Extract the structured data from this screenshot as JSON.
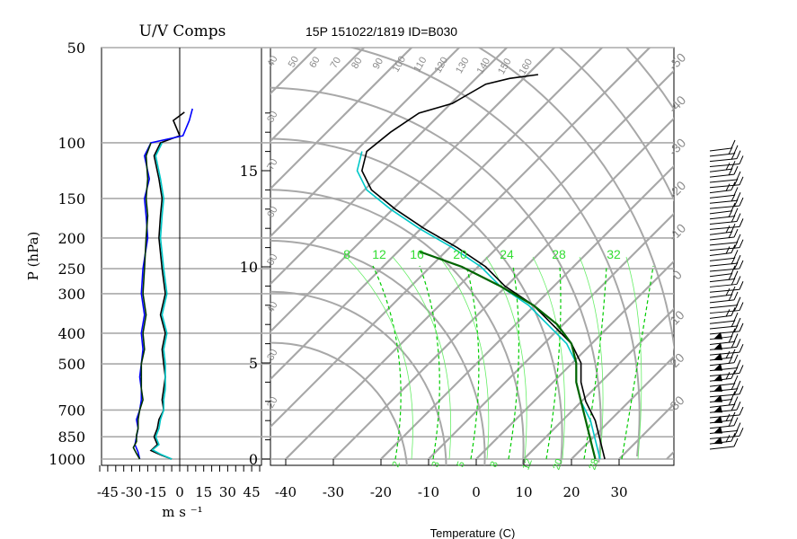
{
  "chart_data": [
    {
      "type": "line",
      "title": "U/V Comps",
      "xlabel": "m s ⁻¹",
      "ylabel": "P (hPa)",
      "x_ticks": [
        "-45",
        "-30",
        "-15",
        "0",
        "15",
        "30",
        "45"
      ],
      "y_ticks": [
        "50",
        "100",
        "150",
        "200",
        "250",
        "300",
        "400",
        "500",
        "700",
        "850",
        "1000"
      ],
      "y_tick_values": [
        50,
        100,
        150,
        200,
        250,
        300,
        400,
        500,
        700,
        850,
        1000
      ],
      "ylim": [
        50,
        1000
      ],
      "xlim": [
        -50,
        50
      ],
      "series": [
        {
          "color": "#000000",
          "points": [
            [
              -5,
              1000
            ],
            [
              -12,
              970
            ],
            [
              -18,
              940
            ],
            [
              -14,
              900
            ],
            [
              -16,
              850
            ],
            [
              -14,
              800
            ],
            [
              -13,
              750
            ],
            [
              -10,
              700
            ],
            [
              -11,
              650
            ],
            [
              -10,
              600
            ],
            [
              -9,
              550
            ],
            [
              -10,
              500
            ],
            [
              -11,
              450
            ],
            [
              -9,
              400
            ],
            [
              -12,
              350
            ],
            [
              -9,
              300
            ],
            [
              -11,
              250
            ],
            [
              -13,
              200
            ],
            [
              -12,
              170
            ],
            [
              -11,
              150
            ],
            [
              -13,
              130
            ],
            [
              -16,
              110
            ],
            [
              -12,
              100
            ],
            [
              0,
              95
            ],
            [
              -4,
              85
            ],
            [
              3,
              80
            ]
          ]
        },
        {
          "color": "#00c8c8",
          "points": [
            [
              -5,
              1000
            ],
            [
              -12,
              965
            ],
            [
              -17,
              935
            ],
            [
              -13,
              900
            ],
            [
              -15,
              850
            ],
            [
              -13,
              800
            ],
            [
              -12,
              750
            ],
            [
              -10,
              700
            ],
            [
              -10,
              650
            ],
            [
              -9,
              600
            ],
            [
              -9,
              550
            ],
            [
              -9,
              500
            ],
            [
              -10,
              450
            ],
            [
              -8,
              400
            ],
            [
              -11,
              350
            ],
            [
              -8,
              300
            ],
            [
              -10,
              250
            ],
            [
              -12,
              200
            ],
            [
              -11,
              170
            ],
            [
              -10,
              150
            ],
            [
              -12,
              130
            ],
            [
              -15,
              110
            ],
            [
              -11,
              100
            ]
          ]
        },
        {
          "color": "#0000ff",
          "points": [
            [
              -25,
              1000
            ],
            [
              -26,
              950
            ],
            [
              -28,
              900
            ],
            [
              -27,
              850
            ],
            [
              -26,
              800
            ],
            [
              -27,
              750
            ],
            [
              -25,
              700
            ],
            [
              -24,
              650
            ],
            [
              -24,
              600
            ],
            [
              -25,
              550
            ],
            [
              -24,
              500
            ],
            [
              -23,
              450
            ],
            [
              -24,
              400
            ],
            [
              -22,
              350
            ],
            [
              -24,
              300
            ],
            [
              -23,
              250
            ],
            [
              -20,
              200
            ],
            [
              -21,
              170
            ],
            [
              -22,
              150
            ],
            [
              -19,
              130
            ],
            [
              -22,
              110
            ],
            [
              -18,
              100
            ],
            [
              2,
              95
            ],
            [
              6,
              85
            ],
            [
              8,
              78
            ]
          ]
        },
        {
          "color": "#003300",
          "points": [
            [
              -25,
              1000
            ],
            [
              -27,
              960
            ],
            [
              -29,
              920
            ],
            [
              -27,
              880
            ],
            [
              -27,
              840
            ],
            [
              -26,
              800
            ],
            [
              -26,
              750
            ],
            [
              -25,
              700
            ],
            [
              -23,
              650
            ],
            [
              -24,
              600
            ],
            [
              -24,
              560
            ],
            [
              -24,
              500
            ],
            [
              -22,
              450
            ],
            [
              -23,
              400
            ],
            [
              -21,
              350
            ],
            [
              -23,
              300
            ],
            [
              -22,
              250
            ],
            [
              -21,
              200
            ],
            [
              -20,
              170
            ],
            [
              -21,
              150
            ],
            [
              -20,
              130
            ],
            [
              -21,
              110
            ],
            [
              -18,
              100
            ]
          ]
        }
      ]
    },
    {
      "type": "line",
      "title": "15P 151022/1819 ID=B030",
      "xlabel": "Temperature (C)",
      "x_ticks": [
        "-40",
        "-30",
        "-20",
        "-10",
        "0",
        "10",
        "20",
        "30"
      ],
      "x_tick_values": [
        -40,
        -30,
        -20,
        -10,
        0,
        10,
        20,
        30
      ],
      "y_ticks": [
        "0",
        "5",
        "10",
        "15"
      ],
      "y_tick_values": [
        0,
        5,
        10,
        15
      ],
      "xlim": [
        -43,
        43
      ],
      "ylim": [
        0,
        18
      ],
      "theta_labels": [
        "40",
        "50",
        "60",
        "70",
        "80",
        "90",
        "100",
        "110",
        "120",
        "130",
        "140",
        "150",
        "160"
      ],
      "dry_adiabat_side_labels": [
        "80",
        "70",
        "60",
        "50",
        "40",
        "30",
        "20"
      ],
      "mixing_ratio_labels": [
        "8",
        "12",
        "16",
        "20",
        "24",
        "28",
        "32"
      ],
      "mixing_ratio_bottom_labels": [
        "2",
        "3",
        "5",
        "8",
        "12",
        "20",
        "28"
      ],
      "isotherm_labels": [
        "-50",
        "-40",
        "-30",
        "-20",
        "-10",
        "0",
        "10",
        "20",
        "30"
      ],
      "series": [
        {
          "name": "temperature",
          "color": "#000000",
          "points": [
            [
              27,
              0
            ],
            [
              26,
              1
            ],
            [
              25,
              2
            ],
            [
              23,
              3
            ],
            [
              22,
              4
            ],
            [
              22,
              5
            ],
            [
              20,
              6
            ],
            [
              16,
              7
            ],
            [
              12,
              8
            ],
            [
              6,
              9
            ],
            [
              2,
              10
            ],
            [
              -4,
              11
            ],
            [
              -11,
              12
            ],
            [
              -17,
              13
            ],
            [
              -22,
              14
            ],
            [
              -24,
              15
            ],
            [
              -23,
              16
            ],
            [
              -18,
              17
            ],
            [
              -12,
              18
            ],
            [
              -5,
              18.5
            ],
            [
              2,
              19.5
            ],
            [
              7,
              19.8
            ],
            [
              13,
              20
            ]
          ]
        },
        {
          "name": "dewpoint",
          "color": "#00c8c8",
          "points": [
            [
              26,
              0
            ],
            [
              25,
              1
            ],
            [
              24,
              2
            ],
            [
              22,
              3
            ],
            [
              21,
              4
            ],
            [
              21,
              5
            ],
            [
              19,
              6
            ],
            [
              15,
              7
            ],
            [
              11,
              8
            ],
            [
              5,
              9
            ],
            [
              1,
              10
            ],
            [
              -5,
              11
            ],
            [
              -12,
              12
            ],
            [
              -18,
              13
            ],
            [
              -23,
              14
            ],
            [
              -25,
              15
            ],
            [
              -24,
              16
            ]
          ]
        },
        {
          "name": "parcel",
          "color": "#006400",
          "points": [
            [
              25,
              0
            ],
            [
              24,
              1
            ],
            [
              23,
              2
            ],
            [
              22,
              3
            ],
            [
              21,
              4
            ],
            [
              21,
              5
            ],
            [
              20,
              6
            ],
            [
              17,
              7
            ],
            [
              12,
              8
            ],
            [
              5,
              9
            ],
            [
              -3,
              10
            ],
            [
              -12,
              10.8
            ]
          ]
        }
      ]
    },
    {
      "type": "wind_barbs",
      "count": 58
    }
  ]
}
